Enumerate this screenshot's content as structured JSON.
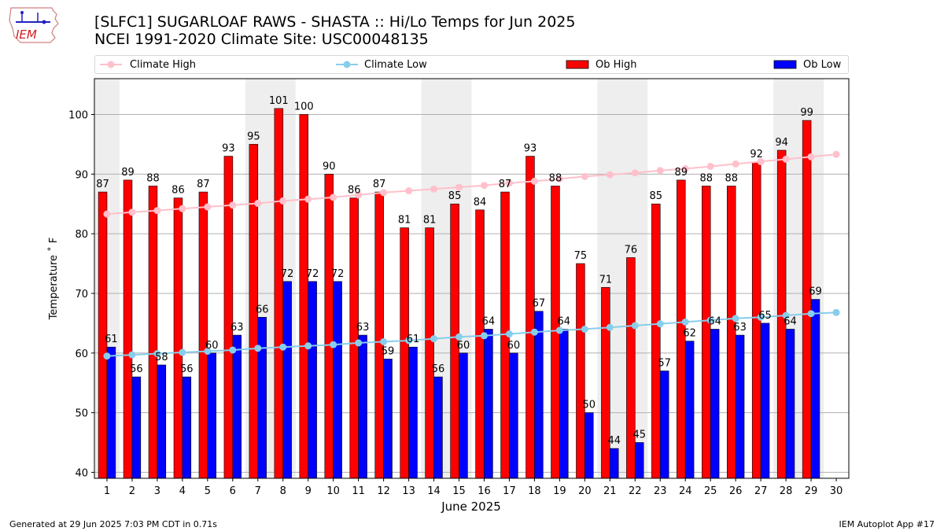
{
  "header": {
    "logo_text": "IEM",
    "title_line1": "[SLFC1] SUGARLOAF RAWS - SHASTA :: Hi/Lo Temps for Jun 2025",
    "title_line2": "NCEI 1991-2020 Climate Site: USC00048135"
  },
  "legend": {
    "climate_high": "Climate High",
    "climate_low": "Climate Low",
    "ob_high": "Ob High",
    "ob_low": "Ob Low"
  },
  "colors": {
    "ob_high": "#ff0000",
    "ob_low": "#0000ff",
    "climate_high": "#ffc0cb",
    "climate_low": "#87ceeb",
    "weekend_shade": "#eeeeee"
  },
  "footer": {
    "left": "Generated at 29 Jun 2025 7:03 PM CDT in 0.71s",
    "right": "IEM Autoplot App #17"
  },
  "chart_data": {
    "type": "bar",
    "xlabel": "June 2025",
    "ylabel": "Temperature ˚ F",
    "ylim": [
      39,
      106
    ],
    "xlim": [
      0.5,
      30.5
    ],
    "yticks": [
      40,
      50,
      60,
      70,
      80,
      90,
      100
    ],
    "categories": [
      "1",
      "2",
      "3",
      "4",
      "5",
      "6",
      "7",
      "8",
      "9",
      "10",
      "11",
      "12",
      "13",
      "14",
      "15",
      "16",
      "17",
      "18",
      "19",
      "20",
      "21",
      "22",
      "23",
      "24",
      "25",
      "26",
      "27",
      "28",
      "29",
      "30"
    ],
    "shaded_days": [
      1,
      7,
      8,
      14,
      15,
      21,
      22,
      28,
      29
    ],
    "grid": true,
    "legend_position": "top",
    "series": [
      {
        "name": "Ob High",
        "type": "bar",
        "values": [
          87,
          89,
          88,
          86,
          87,
          93,
          95,
          101,
          100,
          90,
          86,
          87,
          81,
          81,
          85,
          84,
          87,
          93,
          88,
          75,
          71,
          76,
          85,
          89,
          88,
          88,
          92,
          94,
          99,
          null
        ]
      },
      {
        "name": "Ob Low",
        "type": "bar",
        "values": [
          61,
          56,
          58,
          56,
          60,
          63,
          66,
          72,
          72,
          72,
          63,
          59,
          61,
          56,
          60,
          64,
          60,
          67,
          64,
          50,
          44,
          45,
          57,
          62,
          64,
          63,
          65,
          64,
          69,
          null
        ]
      },
      {
        "name": "Climate High",
        "type": "line",
        "values": [
          83.3,
          83.6,
          83.9,
          84.2,
          84.5,
          84.8,
          85.1,
          85.5,
          85.8,
          86.1,
          86.5,
          86.9,
          87.2,
          87.5,
          87.8,
          88.1,
          88.5,
          88.8,
          89.2,
          89.6,
          89.9,
          90.2,
          90.6,
          90.9,
          91.3,
          91.7,
          92.1,
          92.5,
          92.9,
          93.3
        ]
      },
      {
        "name": "Climate Low",
        "type": "line",
        "values": [
          59.5,
          59.7,
          59.9,
          60.1,
          60.3,
          60.5,
          60.8,
          61.0,
          61.2,
          61.4,
          61.7,
          61.9,
          62.1,
          62.4,
          62.7,
          62.9,
          63.2,
          63.5,
          63.8,
          64.0,
          64.3,
          64.6,
          64.9,
          65.2,
          65.5,
          65.8,
          66.0,
          66.3,
          66.6,
          66.8
        ]
      }
    ]
  }
}
